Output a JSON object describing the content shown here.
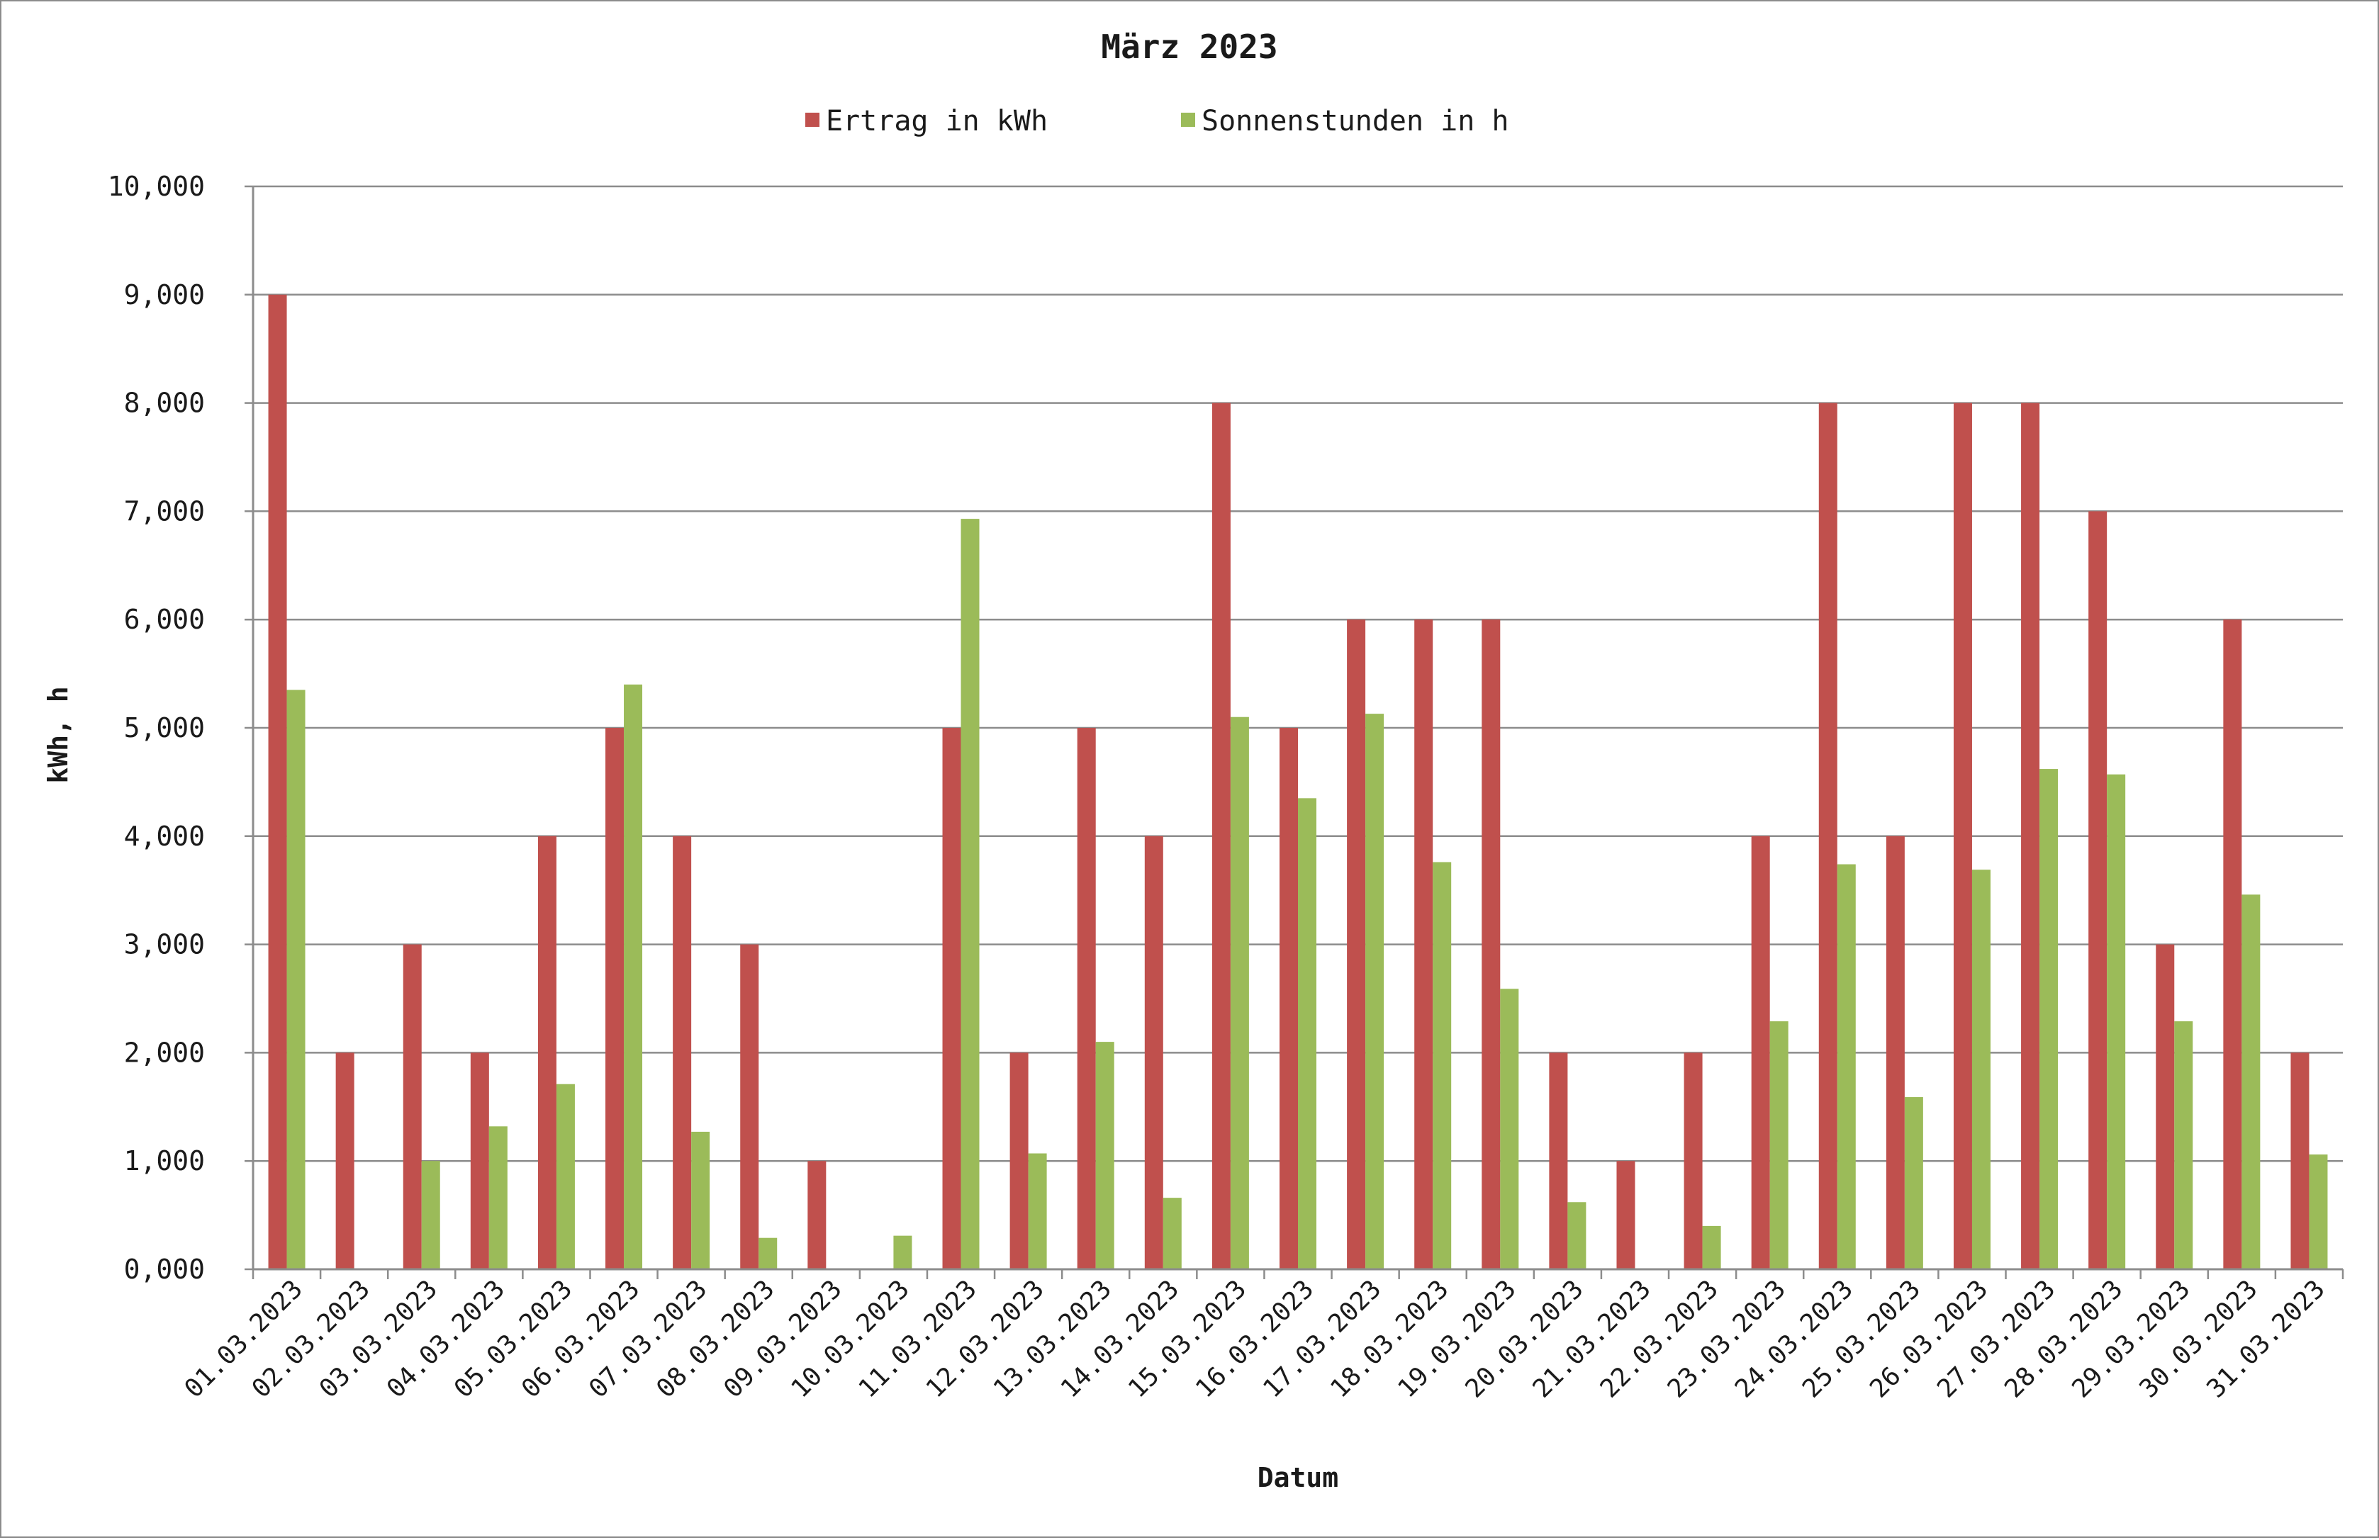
{
  "chart_data": {
    "type": "bar",
    "title": "März 2023",
    "xlabel": "Datum",
    "ylabel": "kWh, h",
    "ylim": [
      0,
      10
    ],
    "y_ticks": [
      "0,000",
      "1,000",
      "2,000",
      "3,000",
      "4,000",
      "5,000",
      "6,000",
      "7,000",
      "8,000",
      "9,000",
      "10,000"
    ],
    "grid": true,
    "legend": "top-center",
    "categories": [
      "01.03.2023",
      "02.03.2023",
      "03.03.2023",
      "04.03.2023",
      "05.03.2023",
      "06.03.2023",
      "07.03.2023",
      "08.03.2023",
      "09.03.2023",
      "10.03.2023",
      "11.03.2023",
      "12.03.2023",
      "13.03.2023",
      "14.03.2023",
      "15.03.2023",
      "16.03.2023",
      "17.03.2023",
      "18.03.2023",
      "19.03.2023",
      "20.03.2023",
      "21.03.2023",
      "22.03.2023",
      "23.03.2023",
      "24.03.2023",
      "25.03.2023",
      "26.03.2023",
      "27.03.2023",
      "28.03.2023",
      "29.03.2023",
      "30.03.2023",
      "31.03.2023"
    ],
    "series": [
      {
        "name": "Ertrag in kWh",
        "color": "#c0504d",
        "values": [
          9,
          2,
          3,
          2,
          4,
          5,
          4,
          3,
          1,
          0,
          5,
          2,
          5,
          4,
          8,
          5,
          6,
          6,
          6,
          2,
          1,
          2,
          4,
          8,
          4,
          8,
          8,
          7,
          3,
          6,
          2
        ]
      },
      {
        "name": "Sonnenstunden in h",
        "color": "#9bbb59",
        "values": [
          5.35,
          0,
          1.0,
          1.32,
          1.71,
          5.4,
          1.27,
          0.29,
          0,
          0.31,
          6.93,
          1.07,
          2.1,
          0.66,
          5.1,
          4.35,
          5.13,
          3.76,
          2.59,
          0.62,
          0,
          0.4,
          2.29,
          3.74,
          1.59,
          3.69,
          4.62,
          4.57,
          2.29,
          3.46,
          1.06
        ]
      }
    ]
  }
}
